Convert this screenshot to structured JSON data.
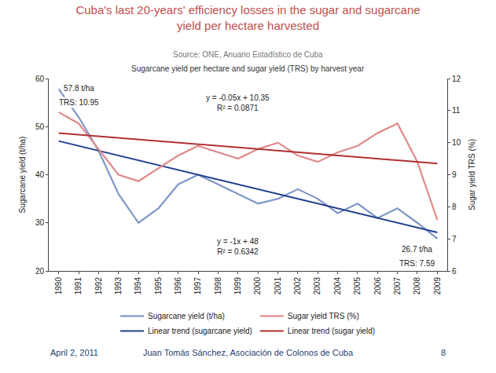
{
  "chart_data": {
    "type": "line",
    "title": "Cuba's last 20-years' efficiency losses in the sugar and sugarcane yield per hectare harvested",
    "subtitle": "Source: ONE, Anuario Estadístico de Cuba",
    "chart_title": "Sugarcane yield per hectare and sugar yield (TRS) by harvest year",
    "y_label": "Sugarcane yield (t/ha)",
    "y2_label": "Sugar yield TRS (%)",
    "categories": [
      "1990",
      "1991",
      "1992",
      "1993",
      "1994",
      "1995",
      "1996",
      "1997",
      "1998",
      "1999",
      "2000",
      "2001",
      "2002",
      "2003",
      "2004",
      "2005",
      "2006",
      "2007",
      "2008",
      "2009"
    ],
    "ylim": [
      20,
      60
    ],
    "yticks": [
      20,
      30,
      40,
      50,
      60
    ],
    "y2lim": [
      6,
      12
    ],
    "y2ticks": [
      6,
      7,
      8,
      9,
      10,
      11,
      12
    ],
    "grid": false,
    "legend": "bottom",
    "series": [
      {
        "name": "Sugarcane yield (t/ha)",
        "color": "#7f96c8",
        "line_style": "solid",
        "values": [
          57.8,
          52,
          45,
          36,
          30,
          33,
          38,
          40,
          38,
          36,
          34,
          35,
          37,
          35,
          32,
          34,
          31,
          33,
          30,
          26.7
        ]
      },
      {
        "name": "Sugar yield TRS (%)",
        "color": "#e08a8a",
        "line_style": "solid",
        "axis": "y2",
        "values": [
          10.95,
          10.6,
          9.8,
          9.0,
          8.8,
          9.2,
          9.6,
          9.9,
          9.7,
          9.5,
          9.8,
          10.0,
          9.6,
          9.4,
          9.7,
          9.9,
          10.3,
          10.6,
          9.4,
          7.59
        ]
      },
      {
        "name": "Linear trend (sugarcane yield)",
        "color": "#1f3f8f",
        "line_style": "solid",
        "values": [
          47,
          46,
          45,
          44,
          43,
          42,
          41,
          40,
          39,
          38,
          37,
          36,
          35,
          34,
          33,
          32,
          31,
          30,
          29,
          28
        ]
      },
      {
        "name": "Linear trend (sugar yield)",
        "color": "#b03030",
        "line_style": "solid",
        "axis": "y2",
        "values": [
          10.3,
          10.25,
          10.2,
          10.15,
          10.1,
          10.05,
          10.0,
          9.95,
          9.9,
          9.85,
          9.8,
          9.75,
          9.7,
          9.65,
          9.6,
          9.55,
          9.5,
          9.45,
          9.4,
          9.35
        ]
      }
    ],
    "annotations": [
      {
        "text": "57.8 t/ha",
        "x": "1991",
        "y": 58
      },
      {
        "text": "TRS: 10.95",
        "x": "1991",
        "y": 55
      },
      {
        "text": [
          "y = -0.05x + 10.35",
          "R² = 0.0871"
        ],
        "x": "1999",
        "y": 55
      },
      {
        "text": [
          "y = -1x + 48",
          "R² = 0.6342"
        ],
        "x": "1999",
        "y": 25
      },
      {
        "text": "26.7 t/ha",
        "x": "2008",
        "y": 24.5
      },
      {
        "text": "TRS: 7.59",
        "x": "2008",
        "y": 21.5
      }
    ],
    "footer": [
      "April 2, 2011",
      "Juan Tomás Sánchez, Asociación de Colonos de Cuba",
      "8"
    ]
  }
}
